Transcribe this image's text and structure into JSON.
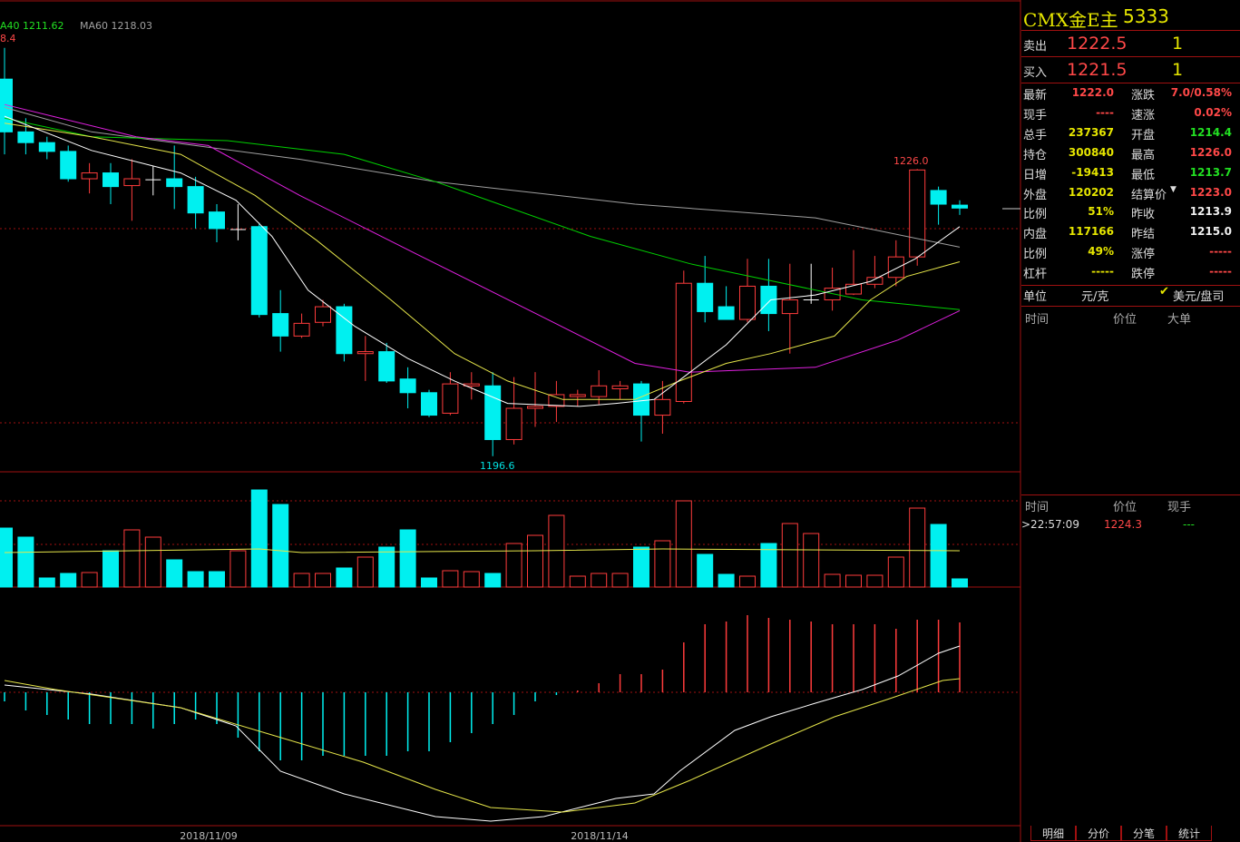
{
  "chart_data": {
    "type": "candlestick",
    "legend_texts": [
      "A40 1211.62",
      "MA60 1218.03"
    ],
    "annotations": [
      "8.4",
      "1226.0",
      "1196.6"
    ],
    "dates": [
      "2018/11/09",
      "2018/11/14"
    ],
    "ylim": [
      1195.0,
      1243.3
    ],
    "open": [
      1235.2,
      1229.8,
      1228.7,
      1227.8,
      1225.0,
      1225.6,
      1224.3,
      1224.9,
      1225.0,
      1224.2,
      1221.6,
      1219.8,
      1220.1,
      1211.2,
      1208.9,
      1210.3,
      1211.9,
      1207.1,
      1207.3,
      1204.5,
      1203.1,
      1201.0,
      1203.8,
      1203.8,
      1198.3,
      1201.5,
      1201.7,
      1202.7,
      1202.7,
      1203.5,
      1204.0,
      1200.8,
      1202.2,
      1214.3,
      1211.9,
      1210.6,
      1214.0,
      1211.2,
      1212.6,
      1212.6,
      1213.2,
      1214.2,
      1214.9,
      1217.0,
      1223.8,
      1222.3
    ],
    "high": [
      1238.4,
      1231.2,
      1229.3,
      1228.4,
      1226.6,
      1226.6,
      1227.0,
      1226.3,
      1228.4,
      1225.2,
      1222.4,
      1222.4,
      1220.5,
      1213.6,
      1211.2,
      1212.6,
      1212.2,
      1208.9,
      1208.2,
      1205.7,
      1203.4,
      1205.2,
      1205.2,
      1205.2,
      1204.7,
      1205.2,
      1204.3,
      1203.4,
      1205.4,
      1204.3,
      1204.3,
      1204.3,
      1215.6,
      1217.1,
      1214.0,
      1216.8,
      1216.8,
      1216.3,
      1216.3,
      1215.9,
      1217.7,
      1217.1,
      1218.7,
      1226.0,
      1224.2,
      1222.8
    ],
    "low": [
      1227.5,
      1227.5,
      1227.0,
      1224.7,
      1223.5,
      1222.4,
      1220.7,
      1223.3,
      1221.9,
      1219.9,
      1218.5,
      1218.7,
      1210.8,
      1207.3,
      1208.7,
      1209.9,
      1206.3,
      1204.3,
      1204.1,
      1201.5,
      1200.6,
      1200.8,
      1202.4,
      1196.6,
      1197.8,
      1199.6,
      1200.1,
      1201.7,
      1201.9,
      1202.4,
      1198.1,
      1198.9,
      1202.0,
      1210.3,
      1210.6,
      1210.3,
      1209.4,
      1207.1,
      1212.2,
      1211.5,
      1213.1,
      1213.8,
      1214.0,
      1216.1,
      1220.3,
      1221.3
    ],
    "close": [
      1229.8,
      1228.7,
      1227.8,
      1225.0,
      1225.6,
      1224.2,
      1225.0,
      1224.9,
      1224.2,
      1221.5,
      1219.9,
      1219.8,
      1211.1,
      1208.9,
      1210.2,
      1211.9,
      1207.1,
      1207.3,
      1204.3,
      1203.1,
      1200.8,
      1204.0,
      1204.0,
      1198.3,
      1201.5,
      1201.7,
      1202.9,
      1202.9,
      1203.8,
      1203.8,
      1200.8,
      1202.4,
      1214.3,
      1211.4,
      1210.6,
      1214.0,
      1211.2,
      1212.6,
      1212.6,
      1213.8,
      1214.2,
      1214.9,
      1217.0,
      1225.9,
      1222.4,
      1222.0
    ],
    "lines": [
      {
        "color": "#a0a0a0",
        "x": [
          0,
          4.1,
          13.9,
          20.3,
          29.7,
          38.2,
          45
        ],
        "values": [
          1232.3,
          1229.8,
          1227.0,
          1224.7,
          1222.4,
          1221.0,
          1218.0
        ]
      },
      {
        "color": "#00d000",
        "x": [
          0,
          4.1,
          10.5,
          16,
          20.3,
          27.6,
          32.3,
          40.4,
          45
        ],
        "values": [
          1231.2,
          1229.3,
          1228.9,
          1227.5,
          1224.7,
          1219.1,
          1216.3,
          1212.6,
          1211.6
        ]
      },
      {
        "color": "#e020e0",
        "x": [
          0,
          6.2,
          9.6,
          13.9,
          19.4,
          25.4,
          29.7,
          32.3,
          38.2,
          42.1,
          45
        ],
        "values": [
          1232.6,
          1229.3,
          1228.4,
          1223.3,
          1217.3,
          1210.8,
          1206.1,
          1205.2,
          1205.7,
          1208.5,
          1211.5
        ]
      },
      {
        "color": "#e6e64a",
        "x": [
          0,
          4.1,
          8.3,
          11.8,
          14.7,
          18.2,
          21.2,
          23.7,
          26.3,
          29.7,
          31.8,
          34.0,
          36.1,
          39.1,
          40.8,
          42.5,
          45
        ],
        "values": [
          1230.7,
          1229.3,
          1227.5,
          1223.3,
          1218.7,
          1212.6,
          1207.1,
          1204.3,
          1202.4,
          1202.4,
          1204.3,
          1206.1,
          1207.1,
          1208.9,
          1212.6,
          1215.0,
          1216.5
        ]
      },
      {
        "color": "#ffffff",
        "x": [
          0,
          4.1,
          8.3,
          10.9,
          12.6,
          14.3,
          16.5,
          19.0,
          21.2,
          23.7,
          27.1,
          28.8,
          30.6,
          32.3,
          34.0,
          36.1,
          38.2,
          40.8,
          42.9,
          45
        ],
        "values": [
          1231.4,
          1227.9,
          1225.6,
          1222.8,
          1219.1,
          1213.6,
          1209.9,
          1206.6,
          1204.3,
          1202.0,
          1201.7,
          1202.0,
          1202.4,
          1205.2,
          1208.0,
          1212.6,
          1213.1,
          1214.5,
          1216.8,
          1220.1
        ]
      }
    ],
    "volume": {
      "ylim": [
        0,
        127
      ],
      "values": [
        65,
        55,
        10,
        15,
        16,
        40,
        63,
        55,
        30,
        17,
        17,
        40,
        107,
        91,
        15,
        15,
        21,
        33,
        44,
        63,
        10,
        18,
        17,
        15,
        48,
        57,
        79,
        12,
        15,
        15,
        44,
        51,
        95,
        36,
        14,
        12,
        48,
        70,
        59,
        14,
        13,
        13,
        33,
        87,
        69,
        9
      ],
      "line": {
        "color": "#e6e64a",
        "x": [
          0,
          12,
          14,
          25,
          31,
          45
        ],
        "values": [
          38,
          42,
          38,
          40,
          42,
          40
        ]
      }
    },
    "macd": {
      "ylim": [
        -147,
        113
      ],
      "values": [
        -10,
        -20,
        -25,
        -30,
        -35,
        -35,
        -35,
        -40,
        -35,
        -30,
        -35,
        -50,
        -65,
        -75,
        -75,
        -70,
        -70,
        -70,
        -70,
        -65,
        -65,
        -55,
        -45,
        -35,
        -25,
        -10,
        -3,
        2,
        10,
        20,
        20,
        25,
        55,
        75,
        78,
        85,
        82,
        80,
        78,
        75,
        75,
        75,
        70,
        80,
        80,
        77
      ],
      "lines": [
        {
          "color": "#ffffff",
          "x": [
            0,
            4.1,
            8.3,
            10.9,
            13.0,
            16.0,
            20.3,
            22.9,
            25.4,
            27.1,
            28.8,
            30.6,
            31.8,
            34.4,
            36.1,
            38.2,
            40.4,
            42.1,
            44.0,
            45
          ],
          "values": [
            8,
            -2,
            -17,
            -37,
            -87,
            -112,
            -137,
            -142,
            -137,
            -127,
            -117,
            -112,
            -87,
            -42,
            -27,
            -12,
            3,
            18,
            43,
            51
          ]
        },
        {
          "color": "#e6e64a",
          "x": [
            0,
            2.4,
            8.3,
            12.6,
            16.9,
            20.3,
            22.9,
            26.3,
            29.7,
            32.3,
            36.1,
            39.1,
            41.7,
            44.2,
            45
          ],
          "values": [
            13,
            3,
            -17,
            -47,
            -77,
            -107,
            -127,
            -132,
            -122,
            -97,
            -57,
            -27,
            -7,
            13,
            15
          ]
        }
      ]
    }
  },
  "quote": {
    "symbol": "CMX金E主",
    "code": "5333",
    "ask": [
      "卖出",
      "1222.5",
      "1"
    ],
    "bid": [
      "买入",
      "1221.5",
      "1"
    ],
    "rows": [
      [
        "最新",
        "1222.0",
        "涨跌",
        "7.0/0.58%"
      ],
      [
        "现手",
        "----",
        "速涨",
        "0.02%"
      ],
      [
        "总手",
        "237367",
        "开盘",
        "1214.4"
      ],
      [
        "持仓",
        "300840",
        "最高",
        "1226.0"
      ],
      [
        "日增",
        "-19413",
        "最低",
        "1213.7"
      ],
      [
        "外盘",
        "120202",
        "结算价",
        "1223.0"
      ],
      [
        "比例",
        "51%",
        "昨收",
        "1213.9"
      ],
      [
        "内盘",
        "117166",
        "昨结",
        "1215.0"
      ],
      [
        "比例",
        "49%",
        "涨停",
        "-----"
      ],
      [
        "杠杆",
        "-----",
        "跌停",
        "-----"
      ]
    ],
    "unit": [
      "单位",
      "元/克",
      "美元/盘司"
    ],
    "big_orders_header": [
      "时间",
      "价位",
      "大单"
    ],
    "ticks_header": [
      "时间",
      "价位",
      "现手"
    ],
    "ticks": [
      [
        ">22:57:09",
        "1224.3",
        "---"
      ]
    ],
    "tabs": [
      "明细",
      "分价",
      "分笔",
      "统计"
    ]
  }
}
